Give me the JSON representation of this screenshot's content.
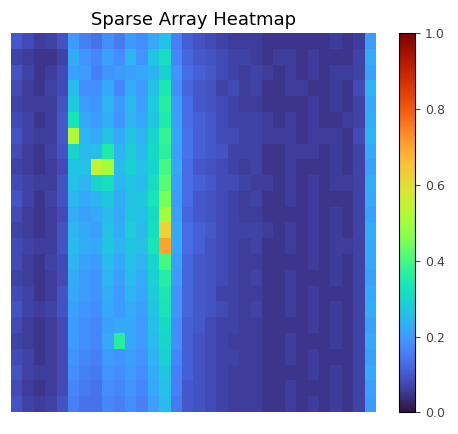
{
  "chart_data": {
    "type": "heatmap",
    "title": "Sparse Array Heatmap",
    "tick_labels": false,
    "color_range": [
      0.0,
      1.0
    ],
    "colorbar_ticks": [
      {
        "value": 0.0,
        "label": "0.0"
      },
      {
        "value": 0.2,
        "label": "0.2"
      },
      {
        "value": 0.4,
        "label": "0.4"
      },
      {
        "value": 0.6,
        "label": "0.6"
      },
      {
        "value": 0.8,
        "label": "0.8"
      },
      {
        "value": 1.0,
        "label": "1.0"
      }
    ],
    "cells": [
      [
        0.1,
        0.08,
        0.06,
        0.07,
        0.09,
        0.2,
        0.16,
        0.14,
        0.18,
        0.15,
        0.2,
        0.18,
        0.22,
        0.26,
        0.16,
        0.11,
        0.09,
        0.08,
        0.07,
        0.06,
        0.06,
        0.06,
        0.05,
        0.05,
        0.05,
        0.05,
        0.05,
        0.05,
        0.06,
        0.05,
        0.06,
        0.2
      ],
      [
        0.07,
        0.06,
        0.05,
        0.05,
        0.07,
        0.23,
        0.19,
        0.17,
        0.21,
        0.18,
        0.24,
        0.19,
        0.27,
        0.32,
        0.17,
        0.12,
        0.1,
        0.09,
        0.08,
        0.07,
        0.07,
        0.06,
        0.05,
        0.06,
        0.06,
        0.05,
        0.06,
        0.05,
        0.05,
        0.05,
        0.07,
        0.23
      ],
      [
        0.09,
        0.07,
        0.05,
        0.06,
        0.08,
        0.21,
        0.2,
        0.16,
        0.19,
        0.2,
        0.21,
        0.22,
        0.24,
        0.29,
        0.19,
        0.13,
        0.11,
        0.1,
        0.08,
        0.07,
        0.06,
        0.07,
        0.06,
        0.05,
        0.06,
        0.05,
        0.06,
        0.05,
        0.06,
        0.06,
        0.07,
        0.21
      ],
      [
        0.08,
        0.06,
        0.05,
        0.07,
        0.08,
        0.25,
        0.18,
        0.18,
        0.22,
        0.17,
        0.23,
        0.2,
        0.26,
        0.34,
        0.18,
        0.12,
        0.1,
        0.09,
        0.07,
        0.08,
        0.06,
        0.07,
        0.05,
        0.05,
        0.06,
        0.06,
        0.05,
        0.05,
        0.06,
        0.05,
        0.08,
        0.24
      ],
      [
        0.07,
        0.06,
        0.06,
        0.06,
        0.09,
        0.28,
        0.2,
        0.19,
        0.24,
        0.2,
        0.25,
        0.21,
        0.28,
        0.36,
        0.2,
        0.13,
        0.1,
        0.09,
        0.08,
        0.07,
        0.06,
        0.06,
        0.05,
        0.05,
        0.05,
        0.05,
        0.06,
        0.05,
        0.06,
        0.05,
        0.07,
        0.22
      ],
      [
        0.08,
        0.07,
        0.05,
        0.06,
        0.1,
        0.33,
        0.22,
        0.2,
        0.23,
        0.19,
        0.24,
        0.22,
        0.27,
        0.35,
        0.21,
        0.13,
        0.11,
        0.1,
        0.08,
        0.07,
        0.07,
        0.07,
        0.06,
        0.05,
        0.06,
        0.05,
        0.06,
        0.05,
        0.05,
        0.06,
        0.07,
        0.23
      ],
      [
        0.09,
        0.07,
        0.06,
        0.06,
        0.1,
        0.52,
        0.24,
        0.22,
        0.26,
        0.22,
        0.27,
        0.24,
        0.3,
        0.38,
        0.22,
        0.14,
        0.11,
        0.1,
        0.08,
        0.08,
        0.07,
        0.07,
        0.06,
        0.06,
        0.06,
        0.05,
        0.06,
        0.06,
        0.06,
        0.05,
        0.08,
        0.24
      ],
      [
        0.08,
        0.06,
        0.05,
        0.07,
        0.09,
        0.3,
        0.25,
        0.26,
        0.35,
        0.24,
        0.28,
        0.25,
        0.31,
        0.37,
        0.21,
        0.14,
        0.11,
        0.1,
        0.09,
        0.07,
        0.07,
        0.07,
        0.05,
        0.05,
        0.06,
        0.06,
        0.06,
        0.05,
        0.06,
        0.05,
        0.07,
        0.22
      ],
      [
        0.07,
        0.06,
        0.05,
        0.06,
        0.08,
        0.27,
        0.26,
        0.55,
        0.5,
        0.25,
        0.29,
        0.26,
        0.3,
        0.4,
        0.22,
        0.13,
        0.1,
        0.09,
        0.08,
        0.07,
        0.06,
        0.07,
        0.05,
        0.05,
        0.06,
        0.05,
        0.05,
        0.05,
        0.06,
        0.05,
        0.07,
        0.21
      ],
      [
        0.08,
        0.07,
        0.06,
        0.06,
        0.09,
        0.26,
        0.24,
        0.3,
        0.32,
        0.24,
        0.27,
        0.25,
        0.32,
        0.42,
        0.21,
        0.13,
        0.11,
        0.1,
        0.08,
        0.08,
        0.07,
        0.06,
        0.06,
        0.05,
        0.06,
        0.05,
        0.06,
        0.05,
        0.06,
        0.06,
        0.07,
        0.23
      ],
      [
        0.09,
        0.07,
        0.05,
        0.07,
        0.09,
        0.24,
        0.22,
        0.24,
        0.27,
        0.23,
        0.26,
        0.27,
        0.33,
        0.45,
        0.2,
        0.13,
        0.1,
        0.09,
        0.08,
        0.07,
        0.06,
        0.07,
        0.05,
        0.05,
        0.06,
        0.05,
        0.06,
        0.05,
        0.05,
        0.05,
        0.07,
        0.22
      ],
      [
        0.08,
        0.06,
        0.05,
        0.06,
        0.08,
        0.23,
        0.21,
        0.22,
        0.25,
        0.22,
        0.27,
        0.26,
        0.31,
        0.5,
        0.21,
        0.12,
        0.1,
        0.09,
        0.08,
        0.07,
        0.06,
        0.06,
        0.05,
        0.05,
        0.05,
        0.05,
        0.06,
        0.05,
        0.06,
        0.05,
        0.07,
        0.21
      ],
      [
        0.07,
        0.06,
        0.05,
        0.06,
        0.09,
        0.24,
        0.22,
        0.21,
        0.26,
        0.23,
        0.28,
        0.25,
        0.32,
        0.62,
        0.22,
        0.13,
        0.11,
        0.1,
        0.08,
        0.07,
        0.07,
        0.07,
        0.06,
        0.05,
        0.06,
        0.05,
        0.06,
        0.05,
        0.06,
        0.05,
        0.07,
        0.23
      ],
      [
        0.08,
        0.07,
        0.06,
        0.06,
        0.09,
        0.25,
        0.23,
        0.22,
        0.27,
        0.24,
        0.27,
        0.26,
        0.33,
        0.7,
        0.22,
        0.13,
        0.11,
        0.09,
        0.08,
        0.07,
        0.06,
        0.07,
        0.05,
        0.05,
        0.06,
        0.05,
        0.06,
        0.05,
        0.06,
        0.06,
        0.07,
        0.22
      ],
      [
        0.08,
        0.06,
        0.05,
        0.07,
        0.08,
        0.24,
        0.21,
        0.2,
        0.25,
        0.22,
        0.26,
        0.24,
        0.3,
        0.4,
        0.21,
        0.12,
        0.1,
        0.09,
        0.08,
        0.07,
        0.06,
        0.06,
        0.05,
        0.05,
        0.05,
        0.05,
        0.06,
        0.05,
        0.06,
        0.05,
        0.07,
        0.22
      ],
      [
        0.07,
        0.06,
        0.05,
        0.06,
        0.08,
        0.23,
        0.2,
        0.19,
        0.24,
        0.21,
        0.25,
        0.23,
        0.29,
        0.36,
        0.2,
        0.12,
        0.1,
        0.09,
        0.08,
        0.07,
        0.06,
        0.07,
        0.05,
        0.05,
        0.06,
        0.05,
        0.05,
        0.05,
        0.06,
        0.05,
        0.07,
        0.21
      ],
      [
        0.08,
        0.07,
        0.05,
        0.06,
        0.09,
        0.22,
        0.2,
        0.19,
        0.23,
        0.2,
        0.24,
        0.22,
        0.28,
        0.34,
        0.19,
        0.12,
        0.1,
        0.09,
        0.07,
        0.07,
        0.06,
        0.06,
        0.05,
        0.05,
        0.06,
        0.05,
        0.06,
        0.05,
        0.05,
        0.05,
        0.07,
        0.22
      ],
      [
        0.09,
        0.07,
        0.06,
        0.07,
        0.09,
        0.21,
        0.19,
        0.18,
        0.22,
        0.2,
        0.23,
        0.21,
        0.27,
        0.33,
        0.19,
        0.12,
        0.1,
        0.09,
        0.08,
        0.07,
        0.06,
        0.07,
        0.05,
        0.05,
        0.06,
        0.05,
        0.06,
        0.05,
        0.06,
        0.05,
        0.07,
        0.23
      ],
      [
        0.08,
        0.06,
        0.05,
        0.06,
        0.08,
        0.2,
        0.18,
        0.17,
        0.21,
        0.22,
        0.22,
        0.2,
        0.26,
        0.31,
        0.18,
        0.11,
        0.1,
        0.08,
        0.07,
        0.07,
        0.06,
        0.06,
        0.05,
        0.05,
        0.05,
        0.05,
        0.06,
        0.05,
        0.06,
        0.05,
        0.07,
        0.21
      ],
      [
        0.07,
        0.06,
        0.05,
        0.06,
        0.08,
        0.2,
        0.18,
        0.17,
        0.22,
        0.36,
        0.22,
        0.2,
        0.25,
        0.3,
        0.18,
        0.11,
        0.09,
        0.08,
        0.07,
        0.06,
        0.06,
        0.06,
        0.05,
        0.05,
        0.06,
        0.05,
        0.05,
        0.05,
        0.06,
        0.05,
        0.07,
        0.22
      ],
      [
        0.08,
        0.07,
        0.05,
        0.06,
        0.08,
        0.19,
        0.17,
        0.16,
        0.2,
        0.19,
        0.21,
        0.19,
        0.24,
        0.29,
        0.17,
        0.11,
        0.09,
        0.08,
        0.07,
        0.07,
        0.06,
        0.06,
        0.05,
        0.05,
        0.06,
        0.05,
        0.06,
        0.05,
        0.05,
        0.05,
        0.07,
        0.21
      ],
      [
        0.09,
        0.07,
        0.06,
        0.06,
        0.08,
        0.18,
        0.16,
        0.15,
        0.19,
        0.18,
        0.2,
        0.18,
        0.23,
        0.27,
        0.16,
        0.11,
        0.09,
        0.08,
        0.07,
        0.06,
        0.06,
        0.06,
        0.05,
        0.05,
        0.05,
        0.05,
        0.06,
        0.05,
        0.06,
        0.05,
        0.07,
        0.22
      ],
      [
        0.08,
        0.06,
        0.05,
        0.06,
        0.08,
        0.17,
        0.15,
        0.14,
        0.18,
        0.17,
        0.19,
        0.17,
        0.22,
        0.26,
        0.16,
        0.1,
        0.09,
        0.08,
        0.07,
        0.06,
        0.06,
        0.06,
        0.05,
        0.05,
        0.06,
        0.05,
        0.05,
        0.05,
        0.06,
        0.05,
        0.07,
        0.21
      ],
      [
        0.09,
        0.07,
        0.06,
        0.07,
        0.09,
        0.16,
        0.14,
        0.14,
        0.17,
        0.16,
        0.18,
        0.16,
        0.21,
        0.25,
        0.15,
        0.1,
        0.09,
        0.08,
        0.07,
        0.06,
        0.06,
        0.06,
        0.05,
        0.05,
        0.06,
        0.05,
        0.06,
        0.05,
        0.06,
        0.05,
        0.07,
        0.2
      ]
    ]
  }
}
